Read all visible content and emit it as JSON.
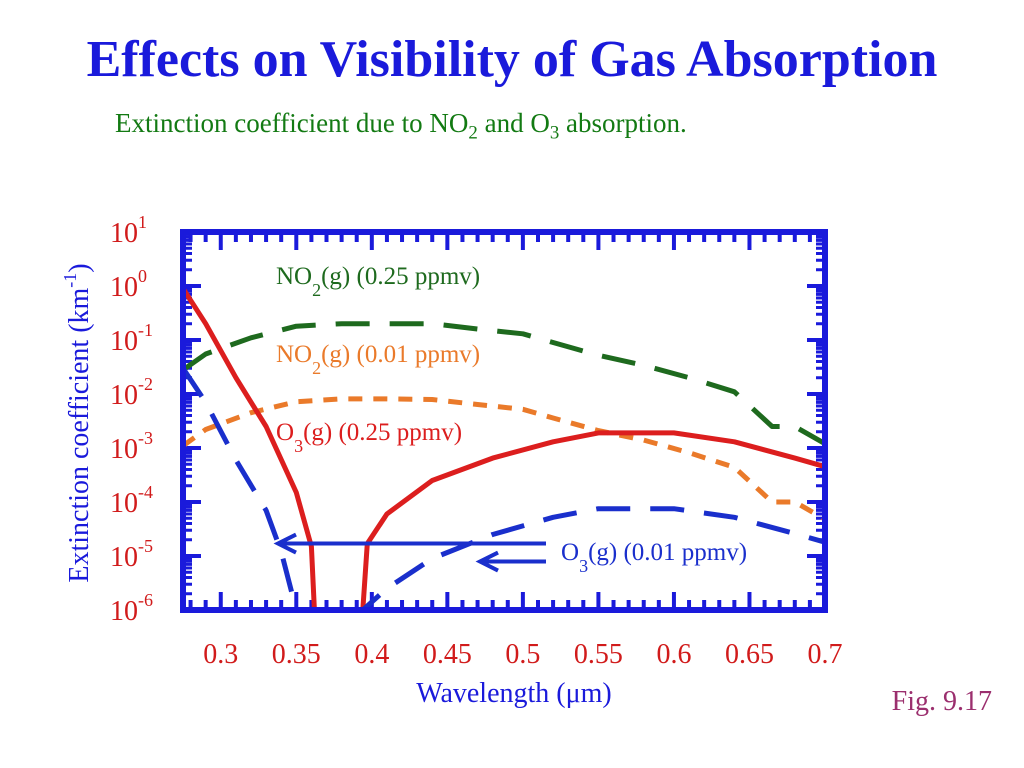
{
  "slide": {
    "title": "Effects on Visibility of Gas Absorption",
    "subtitle": {
      "text_1": "Extinction coefficient due to NO",
      "sub_1": "2",
      "text_2": " and O",
      "sub_2": "3",
      "text_3": " absorption."
    },
    "fig_label": "Fig. 9.17"
  },
  "colors": {
    "title": "#1a1adb",
    "subtitle": "#137a13",
    "axis": "#1a1adb",
    "tick_label": "#d11b1b",
    "fig_label": "#9b2f6e",
    "no2_high": "#1e6a1e",
    "no2_low": "#ea7a2a",
    "o3_high": "#dc1e1e",
    "o3_low": "#1a2fcc",
    "arrow": "#1a2fcc"
  },
  "chart_data": {
    "type": "line",
    "title": "",
    "xlabel": "Wavelength (μm)",
    "ylabel": "Extinction coefficient (km",
    "ylabel_sup": "-1",
    "ylabel_end": ")",
    "xlim": [
      0.275,
      0.7
    ],
    "ylim": [
      1e-06,
      10
    ],
    "y_scale": "log",
    "x_ticks": [
      0.3,
      0.35,
      0.4,
      0.45,
      0.5,
      0.55,
      0.6,
      0.65,
      0.7
    ],
    "x_tick_labels": [
      "0.3",
      "0.35",
      "0.4",
      "0.45",
      "0.5",
      "0.55",
      "0.6",
      "0.65",
      "0.7"
    ],
    "y_ticks": [
      {
        "value": 10,
        "base": "10",
        "exp": "1"
      },
      {
        "value": 1,
        "base": "10",
        "exp": "0"
      },
      {
        "value": 0.1,
        "base": "10",
        "exp": "-1"
      },
      {
        "value": 0.01,
        "base": "10",
        "exp": "-2"
      },
      {
        "value": 0.001,
        "base": "10",
        "exp": "-3"
      },
      {
        "value": 0.0001,
        "base": "10",
        "exp": "-4"
      },
      {
        "value": 1e-05,
        "base": "10",
        "exp": "-5"
      },
      {
        "value": 1e-06,
        "base": "10",
        "exp": "-6"
      }
    ],
    "series": [
      {
        "key": "no2_high",
        "label_main": "NO",
        "label_sub": "2",
        "label_rest": "(g) (0.25 ppmv)",
        "style": "long-dash",
        "x": [
          0.275,
          0.29,
          0.32,
          0.35,
          0.38,
          0.41,
          0.44,
          0.47,
          0.5,
          0.52,
          0.55,
          0.58,
          0.61,
          0.64,
          0.665,
          0.68,
          0.7
        ],
        "y": [
          0.028,
          0.055,
          0.11,
          0.18,
          0.2,
          0.2,
          0.2,
          0.16,
          0.13,
          0.09,
          0.052,
          0.034,
          0.02,
          0.011,
          0.0025,
          0.0025,
          0.0012
        ]
      },
      {
        "key": "no2_low",
        "label_main": "NO",
        "label_sub": "2",
        "label_rest": "(g) (0.01 ppmv)",
        "style": "short-dash",
        "x": [
          0.275,
          0.29,
          0.32,
          0.35,
          0.38,
          0.41,
          0.44,
          0.47,
          0.5,
          0.52,
          0.55,
          0.58,
          0.61,
          0.64,
          0.665,
          0.68,
          0.7
        ],
        "y": [
          0.0011,
          0.0022,
          0.0045,
          0.0072,
          0.0081,
          0.0081,
          0.0079,
          0.0064,
          0.0052,
          0.0036,
          0.0021,
          0.0014,
          0.00082,
          0.00044,
          0.0001,
          0.0001,
          4.8e-05
        ]
      },
      {
        "key": "o3_high",
        "label_main": "O",
        "label_sub": "3",
        "label_rest": "(g) (0.25 ppmv)",
        "style": "solid",
        "x": [
          0.275,
          0.29,
          0.31,
          0.33,
          0.35,
          0.36,
          0.362,
          0.394,
          0.397,
          0.41,
          0.44,
          0.48,
          0.52,
          0.55,
          0.6,
          0.64,
          0.68,
          0.7
        ],
        "y": [
          0.9,
          0.2,
          0.02,
          0.0025,
          0.00015,
          1.5e-05,
          1e-06,
          1e-06,
          1.7e-05,
          6e-05,
          0.00025,
          0.00065,
          0.0013,
          0.0019,
          0.0019,
          0.0013,
          0.00065,
          0.00045
        ]
      },
      {
        "key": "o3_low",
        "label_main": "O",
        "label_sub": "3",
        "label_rest": "(g) (0.01 ppmv)",
        "style": "long-dash",
        "x": [
          0.275,
          0.29,
          0.31,
          0.33,
          0.34,
          0.35,
          0.36,
          0.394,
          0.41,
          0.44,
          0.48,
          0.52,
          0.55,
          0.6,
          0.64,
          0.68,
          0.7
        ],
        "y": [
          0.03,
          0.007,
          0.0006,
          7e-05,
          1.2e-05,
          1e-06,
          1e-06,
          1e-06,
          2.5e-06,
          9e-06,
          2.5e-05,
          5.2e-05,
          7.5e-05,
          7.5e-05,
          5.2e-05,
          2.6e-05,
          1.8e-05
        ]
      }
    ]
  }
}
